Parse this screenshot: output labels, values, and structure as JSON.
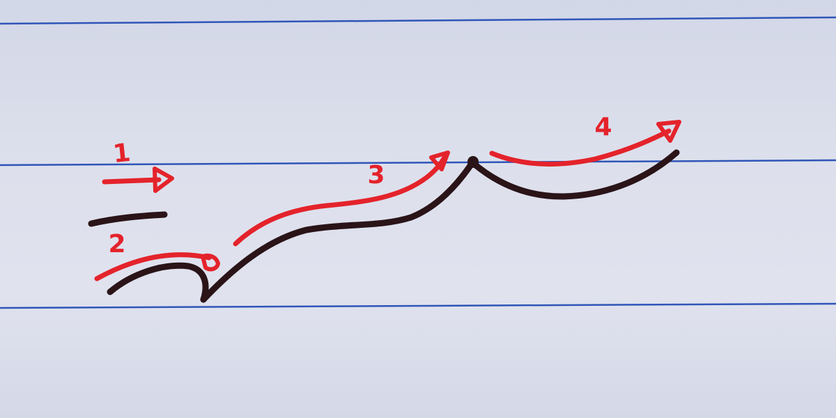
{
  "colors": {
    "paper": "#d9dcea",
    "rule_line": "#2f55b8",
    "guide_stroke": "#e4232b",
    "letter_stroke": "#2a1418"
  },
  "steps": [
    {
      "label": "1"
    },
    {
      "label": "2"
    },
    {
      "label": "3"
    },
    {
      "label": "4"
    }
  ]
}
